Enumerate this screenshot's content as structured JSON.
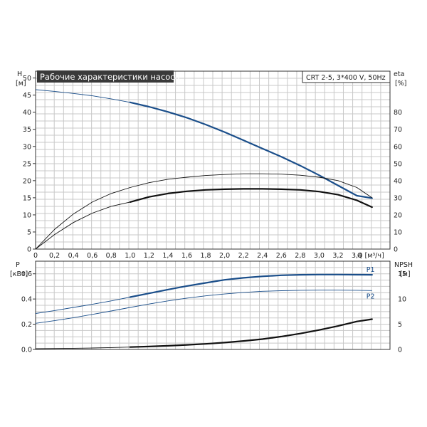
{
  "chart_data": [
    {
      "type": "line",
      "title": "Рабочие характеристики насоса",
      "info": "CRT 2-5, 3*400 V, 50Hz",
      "x_label": "Q [м³/ч]",
      "y_left_label": [
        "H",
        "[м]"
      ],
      "y_right_label": [
        "eta",
        "[%]"
      ],
      "x_ticks": [
        "0",
        "0,2",
        "0,4",
        "0,6",
        "0,8",
        "1,0",
        "1,2",
        "1,4",
        "1,6",
        "1,8",
        "2,0",
        "2,2",
        "2,4",
        "2,6",
        "2,8",
        "3,0",
        "3,2",
        "3,4"
      ],
      "y_left_ticks": [
        "0",
        "5",
        "10",
        "15",
        "20",
        "25",
        "30",
        "35",
        "40",
        "45",
        "50"
      ],
      "y_right_ticks": [
        "0",
        "10",
        "20",
        "30",
        "40",
        "50",
        "60",
        "70",
        "80"
      ],
      "xlim": [
        0,
        3.75
      ],
      "ylim_left": [
        0,
        52
      ],
      "ylim_right": [
        0,
        104
      ],
      "grid": true,
      "series": [
        {
          "axis": "left",
          "color": "#1a4e8a",
          "dashed_until": 0.98,
          "x": [
            0,
            0.2,
            0.4,
            0.6,
            0.8,
            1.0,
            1.2,
            1.4,
            1.6,
            1.8,
            2.0,
            2.2,
            2.4,
            2.6,
            2.8,
            3.0,
            3.2,
            3.4,
            3.56
          ],
          "values": [
            46.6,
            46.1,
            45.5,
            44.8,
            43.9,
            42.9,
            41.6,
            40.1,
            38.4,
            36.4,
            34.2,
            31.8,
            29.4,
            27.0,
            24.4,
            21.6,
            18.6,
            15.6,
            14.9
          ]
        },
        {
          "axis": "right",
          "color": "#111111",
          "thin": true,
          "x": [
            0,
            0.2,
            0.4,
            0.6,
            0.8,
            1.0,
            1.2,
            1.4,
            1.6,
            1.8,
            2.0,
            2.2,
            2.4,
            2.6,
            2.8,
            3.0,
            3.2,
            3.4,
            3.56
          ],
          "values": [
            0,
            11.5,
            20.5,
            27.5,
            32.5,
            36.0,
            38.8,
            40.8,
            42.0,
            43.0,
            43.6,
            44.0,
            44.0,
            43.8,
            43.2,
            42.0,
            40.0,
            36.0,
            30.0
          ]
        },
        {
          "axis": "right",
          "color": "#111111",
          "dashed_until": 0.98,
          "x": [
            0,
            0.2,
            0.4,
            0.6,
            0.8,
            1.0,
            1.2,
            1.4,
            1.6,
            1.8,
            2.0,
            2.2,
            2.4,
            2.6,
            2.8,
            3.0,
            3.2,
            3.4,
            3.56
          ],
          "values": [
            0,
            8.5,
            15.5,
            21.0,
            25.0,
            27.5,
            30.5,
            32.5,
            33.8,
            34.6,
            35.0,
            35.2,
            35.2,
            35.0,
            34.6,
            33.6,
            31.8,
            28.5,
            24.5
          ]
        }
      ]
    },
    {
      "type": "line",
      "y_left_label": [
        "P",
        "[кВт]"
      ],
      "y_right_label": [
        "NPSH",
        "[м]"
      ],
      "y_left_ticks": [
        "0.0",
        "0.2",
        "0.4",
        "0.6"
      ],
      "y_right_ticks": [
        "0",
        "5",
        "10",
        "15"
      ],
      "xlim": [
        0,
        3.75
      ],
      "ylim_left": [
        0,
        0.7
      ],
      "ylim_right": [
        0,
        17.5
      ],
      "grid": true,
      "series": [
        {
          "name": "P1",
          "axis": "left",
          "color": "#1a4e8a",
          "dashed_until": 0.98,
          "x": [
            0,
            0.2,
            0.4,
            0.6,
            0.8,
            1.0,
            1.2,
            1.4,
            1.6,
            1.8,
            2.0,
            2.2,
            2.4,
            2.6,
            2.8,
            3.0,
            3.2,
            3.4,
            3.56
          ],
          "values": [
            0.285,
            0.308,
            0.333,
            0.358,
            0.385,
            0.415,
            0.445,
            0.475,
            0.503,
            0.528,
            0.552,
            0.568,
            0.58,
            0.588,
            0.592,
            0.594,
            0.594,
            0.593,
            0.592
          ]
        },
        {
          "name": "P2",
          "axis": "left",
          "color": "#1a4e8a",
          "thin": true,
          "x": [
            0,
            0.2,
            0.4,
            0.6,
            0.8,
            1.0,
            1.2,
            1.4,
            1.6,
            1.8,
            2.0,
            2.2,
            2.4,
            2.6,
            2.8,
            3.0,
            3.2,
            3.4,
            3.56
          ],
          "values": [
            0.207,
            0.228,
            0.252,
            0.278,
            0.305,
            0.333,
            0.36,
            0.385,
            0.407,
            0.425,
            0.44,
            0.452,
            0.461,
            0.466,
            0.469,
            0.47,
            0.47,
            0.469,
            0.467
          ]
        },
        {
          "axis": "right",
          "color": "#111111",
          "dashed_until": 0.98,
          "x": [
            0,
            0.2,
            0.4,
            0.6,
            0.8,
            1.0,
            1.2,
            1.4,
            1.6,
            1.8,
            2.0,
            2.2,
            2.4,
            2.6,
            2.8,
            3.0,
            3.2,
            3.4,
            3.56
          ],
          "values": [
            0.15,
            0.18,
            0.22,
            0.28,
            0.36,
            0.46,
            0.58,
            0.72,
            0.9,
            1.1,
            1.35,
            1.68,
            2.05,
            2.55,
            3.15,
            3.85,
            4.65,
            5.55,
            6.0
          ]
        }
      ]
    }
  ]
}
